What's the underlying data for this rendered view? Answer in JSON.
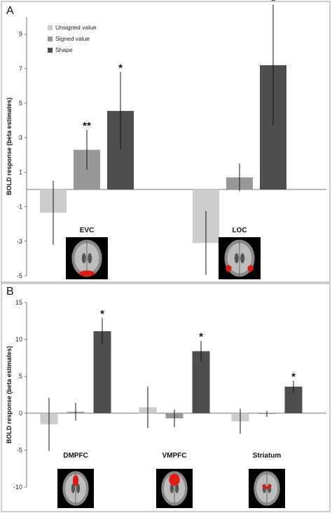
{
  "chart_data": [
    {
      "panel": "A",
      "type": "bar",
      "ylabel": "BOLD response (beta estimates)",
      "ylim": [
        -5,
        10
      ],
      "yticks": [
        -5,
        -3,
        -1,
        1,
        3,
        5,
        7,
        9
      ],
      "legend": {
        "position": "top-left",
        "entries": [
          "Unsigned value",
          "Signed value",
          "Shape"
        ]
      },
      "categories": [
        "EVC",
        "LOC"
      ],
      "series": [
        {
          "name": "Unsigned value",
          "color": "#cccccc",
          "values": [
            -1.35,
            -3.1
          ],
          "err": [
            1.85,
            1.85
          ],
          "sig": [
            "",
            ""
          ]
        },
        {
          "name": "Signed value",
          "color": "#979797",
          "values": [
            2.3,
            0.7
          ],
          "err": [
            1.15,
            0.8
          ],
          "sig": [
            "**",
            ""
          ]
        },
        {
          "name": "Shape",
          "color": "#4e4e4e",
          "values": [
            4.55,
            7.2
          ],
          "err": [
            2.25,
            3.5
          ],
          "sig": [
            "*",
            "*"
          ]
        }
      ],
      "brain_highlight": [
        "posterior-occipital",
        "lateral-occipital"
      ]
    },
    {
      "panel": "B",
      "type": "bar",
      "ylabel": "BOLD response (beta estimates)",
      "ylim": [
        -10,
        15
      ],
      "yticks": [
        -10,
        -5,
        0,
        5,
        10,
        15
      ],
      "categories": [
        "DMPFC",
        "VMPFC",
        "Striatum"
      ],
      "series": [
        {
          "name": "Unsigned value",
          "color": "#cccccc",
          "values": [
            -1.5,
            0.8,
            -1.1
          ],
          "err": [
            3.6,
            2.8,
            1.7
          ],
          "sig": [
            "",
            "",
            ""
          ]
        },
        {
          "name": "Signed value",
          "color": "#979797",
          "values": [
            0.2,
            -0.7,
            -0.1
          ],
          "err": [
            1.2,
            1.2,
            0.4
          ],
          "sig": [
            "",
            "",
            ""
          ]
        },
        {
          "name": "Shape",
          "color": "#4e4e4e",
          "values": [
            11.1,
            8.4,
            3.6
          ],
          "err": [
            1.8,
            1.4,
            0.8
          ],
          "sig": [
            "*",
            "*",
            "*"
          ]
        }
      ],
      "brain_highlight": [
        "dorsomedial-prefrontal",
        "ventromedial-prefrontal",
        "striatum"
      ]
    }
  ]
}
